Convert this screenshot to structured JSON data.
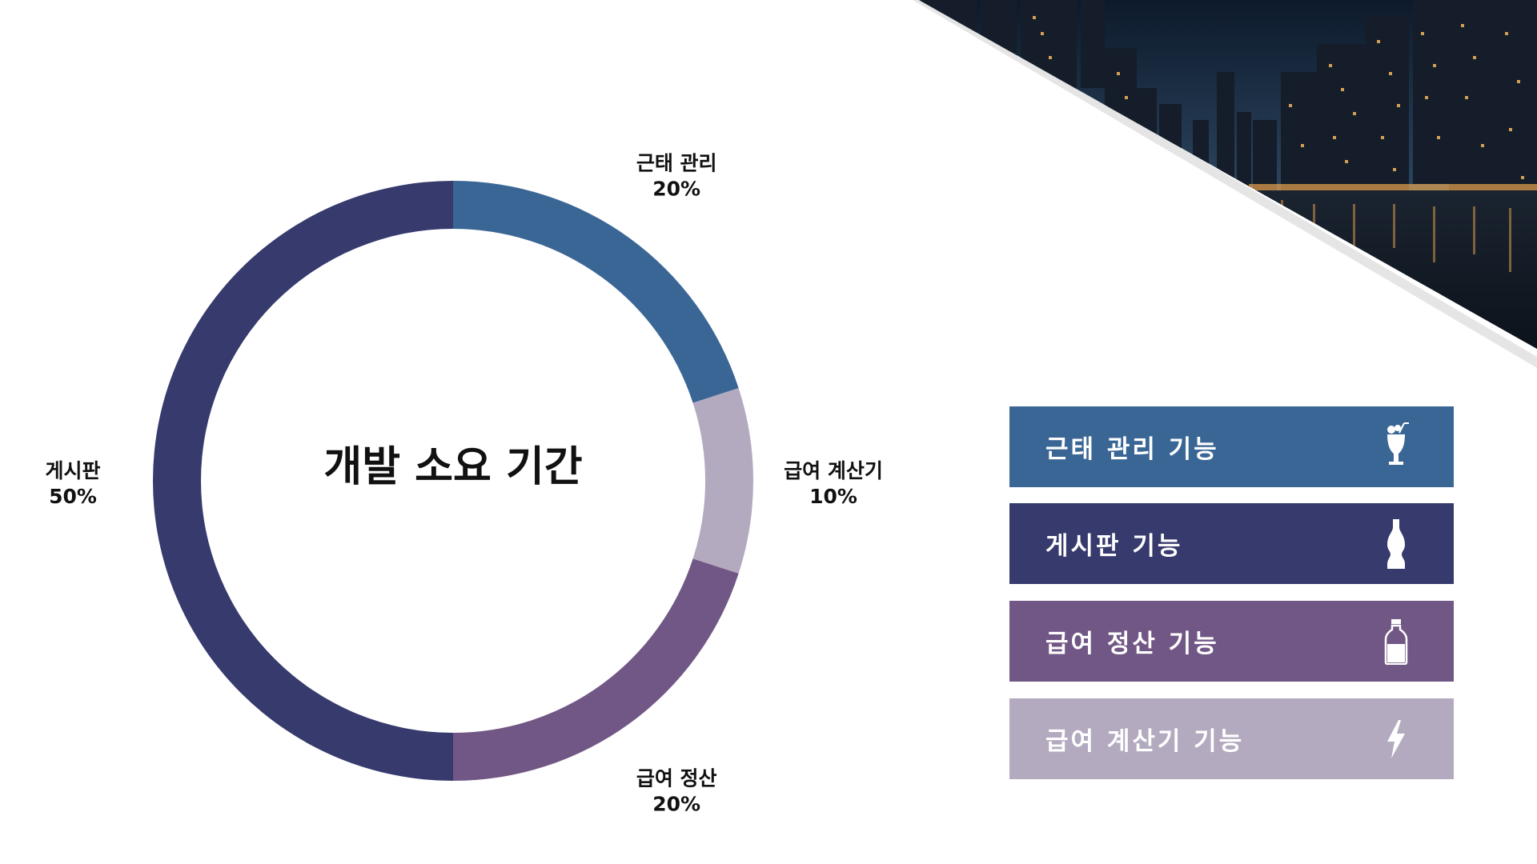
{
  "chart_data": {
    "type": "pie",
    "title": "개발 소요 기간",
    "slices": [
      {
        "name": "근태 관리",
        "value": 20,
        "label_value": "20%",
        "color": "#3a6696"
      },
      {
        "name": "급여 계산기",
        "value": 10,
        "label_value": "10%",
        "color": "#b3aac0"
      },
      {
        "name": "급여 정산",
        "value": 20,
        "label_value": "20%",
        "color": "#715785"
      },
      {
        "name": "게시판",
        "value": 50,
        "label_value": "50%",
        "color": "#363a6d"
      }
    ]
  },
  "legend": {
    "items": [
      {
        "label": "근태 관리 기능",
        "icon": "cocktail-glass-icon",
        "color": "#3a6696"
      },
      {
        "label": "게시판 기능",
        "icon": "soda-bottle-icon",
        "color": "#363a6d"
      },
      {
        "label": "급여 정산 기능",
        "icon": "milk-bottle-icon",
        "color": "#715785"
      },
      {
        "label": "급여 계산기 기능",
        "icon": "lightning-bolt-icon",
        "color": "#b3aac0"
      }
    ]
  }
}
